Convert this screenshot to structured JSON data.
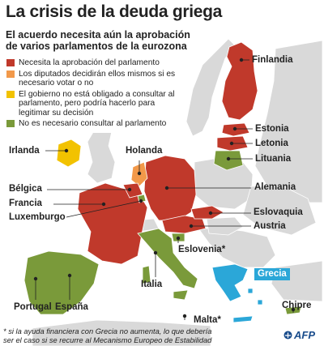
{
  "title": "La crisis de la deuda griega",
  "subtitle_line1": "El acuerdo necesita aún la aprobación",
  "subtitle_line2": "de varios parlamentos de la eurozona",
  "legend": [
    {
      "color": "#c0392b",
      "text": "Necesita la aprobación del parlamento"
    },
    {
      "color": "#f2994a",
      "text": "Los diputados decidirán ellos mismos si es necesario votar o no"
    },
    {
      "color": "#f2c200",
      "text": "El gobierno no está obligado a consultar al parlamento, pero podría hacerlo para legitimar su decisión"
    },
    {
      "color": "#7a9a3a",
      "text": "No es necesario consultar al parlamento"
    }
  ],
  "countries": {
    "finlandia": "Finlandia",
    "estonia": "Estonia",
    "letonia": "Letonia",
    "lituania": "Lituania",
    "irlanda": "Irlanda",
    "holanda": "Holanda",
    "belgica": "Bélgica",
    "francia": "Francia",
    "luxemburgo": "Luxemburgo",
    "alemania": "Alemania",
    "eslovaquia": "Eslovaquia",
    "austria": "Austria",
    "eslovenia": "Eslovenia*",
    "grecia": "Grecia",
    "italia": "Italia",
    "portugal": "Portugal",
    "espana": "España",
    "malta": "Malta*",
    "chipre": "Chipre"
  },
  "footnote_line1": "* si la ayuda financiera con Grecia no aumenta, lo que debería",
  "footnote_line2": "ser el caso si se recurre al Mecanismo Europeo de Estabilidad",
  "brand": "AFP",
  "colors": {
    "sea": "#ffffff",
    "land": "#d9d9d9",
    "red": "#c0392b",
    "orange": "#f2994a",
    "yellow": "#f2c200",
    "green": "#7a9a3a",
    "greece": "#2ba7d8"
  }
}
